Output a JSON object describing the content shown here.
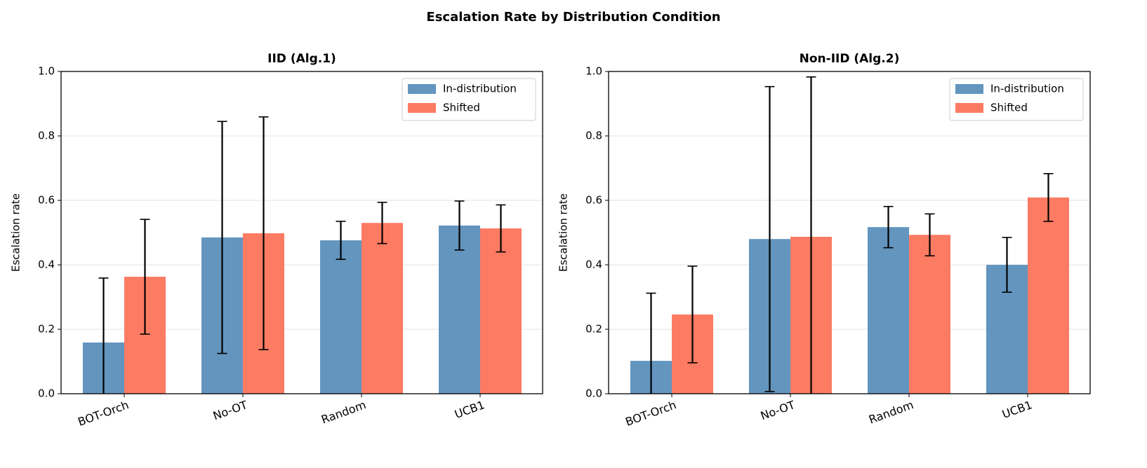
{
  "title": "Escalation Rate by Distribution Condition",
  "chart_data": [
    {
      "type": "bar",
      "title": "IID (Alg.1)",
      "ylabel": "Escalation rate",
      "categories": [
        "BOT-Orch",
        "No-OT",
        "Random",
        "UCB1"
      ],
      "series": [
        {
          "name": "In-distribution",
          "color": "#6395bf",
          "values": [
            0.159,
            0.485,
            0.476,
            0.522
          ],
          "errors": [
            0.2,
            0.36,
            0.059,
            0.076
          ]
        },
        {
          "name": "Shifted",
          "color": "#fd7b63",
          "values": [
            0.363,
            0.498,
            0.53,
            0.513
          ],
          "errors": [
            0.178,
            0.361,
            0.064,
            0.073
          ]
        }
      ],
      "ylim": [
        0,
        1
      ],
      "yticks": [
        {
          "value": 0,
          "label": "0.0"
        },
        {
          "value": 0.2,
          "label": "0.2"
        },
        {
          "value": 0.4,
          "label": "0.4"
        },
        {
          "value": 0.6,
          "label": "0.6"
        },
        {
          "value": 0.8,
          "label": "0.8"
        },
        {
          "value": 1,
          "label": "1.0"
        }
      ],
      "grid": true,
      "legend": "upper right"
    },
    {
      "type": "bar",
      "title": "Non-IID (Alg.2)",
      "ylabel": "Escalation rate",
      "categories": [
        "BOT-Orch",
        "No-OT",
        "Random",
        "UCB1"
      ],
      "series": [
        {
          "name": "In-distribution",
          "color": "#6395bf",
          "values": [
            0.102,
            0.48,
            0.517,
            0.4
          ],
          "errors": [
            0.21,
            0.473,
            0.064,
            0.085
          ]
        },
        {
          "name": "Shifted",
          "color": "#fd7b63",
          "values": [
            0.246,
            0.487,
            0.493,
            0.609
          ],
          "errors": [
            0.15,
            0.496,
            0.065,
            0.074
          ]
        }
      ],
      "ylim": [
        0,
        1
      ],
      "yticks": [
        {
          "value": 0,
          "label": "0.0"
        },
        {
          "value": 0.2,
          "label": "0.2"
        },
        {
          "value": 0.4,
          "label": "0.4"
        },
        {
          "value": 0.6,
          "label": "0.6"
        },
        {
          "value": 0.8,
          "label": "0.8"
        },
        {
          "value": 1,
          "label": "1.0"
        }
      ],
      "grid": true,
      "legend": "upper right"
    }
  ]
}
